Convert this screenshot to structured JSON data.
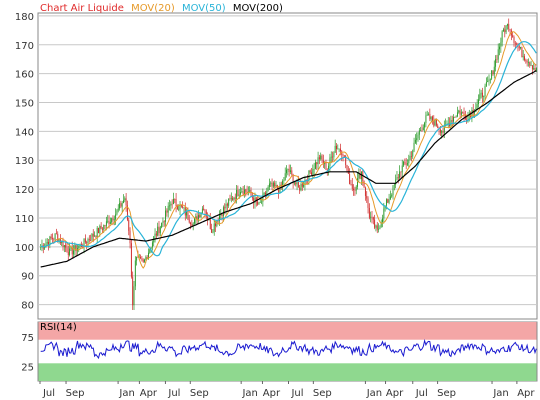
{
  "chart_data": [
    {
      "type": "candlestick",
      "title": "Chart Air Liquide",
      "legend": [
        {
          "name": "MOV(20)",
          "color": "#e69a2a"
        },
        {
          "name": "MOV(50)",
          "color": "#2ab4d8"
        },
        {
          "name": "MOV(200)",
          "color": "#000000"
        }
      ],
      "title_color": "#e02a2a",
      "ylim": [
        75,
        181
      ],
      "y_ticks": [
        80,
        90,
        100,
        110,
        120,
        130,
        140,
        150,
        160,
        170,
        180
      ],
      "grid": true,
      "up_color": "#2a9a2a",
      "down_color": "#d02a2a",
      "price_anchors": [
        [
          0,
          100
        ],
        [
          12,
          104
        ],
        [
          22,
          98
        ],
        [
          32,
          101
        ],
        [
          40,
          104
        ],
        [
          50,
          108
        ],
        [
          58,
          112
        ],
        [
          64,
          117
        ],
        [
          68,
          102
        ],
        [
          70,
          79
        ],
        [
          72,
          96
        ],
        [
          78,
          94
        ],
        [
          86,
          103
        ],
        [
          92,
          108
        ],
        [
          100,
          116
        ],
        [
          108,
          113
        ],
        [
          116,
          108
        ],
        [
          124,
          114
        ],
        [
          130,
          106
        ],
        [
          136,
          111
        ],
        [
          144,
          116
        ],
        [
          152,
          120
        ],
        [
          158,
          119
        ],
        [
          166,
          114
        ],
        [
          174,
          121
        ],
        [
          182,
          120
        ],
        [
          188,
          127
        ],
        [
          196,
          120
        ],
        [
          204,
          125
        ],
        [
          212,
          131
        ],
        [
          218,
          127
        ],
        [
          224,
          135
        ],
        [
          230,
          133
        ],
        [
          234,
          124
        ],
        [
          238,
          120
        ],
        [
          244,
          126
        ],
        [
          250,
          111
        ],
        [
          256,
          105
        ],
        [
          262,
          114
        ],
        [
          268,
          120
        ],
        [
          274,
          127
        ],
        [
          280,
          130
        ],
        [
          288,
          140
        ],
        [
          294,
          145
        ],
        [
          300,
          143
        ],
        [
          306,
          140
        ],
        [
          312,
          144
        ],
        [
          318,
          147
        ],
        [
          324,
          145
        ],
        [
          330,
          148
        ],
        [
          336,
          153
        ],
        [
          342,
          158
        ],
        [
          348,
          168
        ],
        [
          352,
          175
        ],
        [
          356,
          177
        ],
        [
          360,
          172
        ],
        [
          366,
          167
        ],
        [
          372,
          164
        ],
        [
          377,
          161
        ]
      ],
      "mov200_anchors": [
        [
          0,
          93
        ],
        [
          20,
          95
        ],
        [
          40,
          100
        ],
        [
          60,
          103
        ],
        [
          80,
          102
        ],
        [
          100,
          104
        ],
        [
          120,
          108
        ],
        [
          140,
          112
        ],
        [
          160,
          115
        ],
        [
          180,
          120
        ],
        [
          200,
          124
        ],
        [
          220,
          126
        ],
        [
          240,
          126
        ],
        [
          255,
          122
        ],
        [
          270,
          122
        ],
        [
          285,
          128
        ],
        [
          300,
          136
        ],
        [
          320,
          144
        ],
        [
          340,
          150
        ],
        [
          360,
          157
        ],
        [
          377,
          161
        ]
      ],
      "x_tick_labels": [
        "Jul",
        "Sep",
        "Jan",
        "Apr",
        "Jul",
        "Sep",
        "Jan",
        "Apr",
        "Jul",
        "Sep",
        "Jan",
        "Apr",
        "Jul",
        "Sep",
        "Jan",
        "Apr"
      ],
      "x_tick_positions": [
        0,
        22,
        66,
        84,
        106,
        127,
        170,
        188,
        210,
        231,
        275,
        292,
        315,
        336,
        382,
        403
      ]
    },
    {
      "type": "line",
      "title": "RSI(14)",
      "ylim": [
        0,
        100
      ],
      "y_ticks": [
        25,
        75
      ],
      "overbought_band": [
        70,
        100
      ],
      "oversold_band": [
        0,
        30
      ],
      "band_colors": {
        "overbought": "#f4a6a6",
        "oversold": "#8fd88f",
        "line": "#1a1ad0"
      },
      "series": [
        {
          "values": [
            55,
            60,
            48,
            52,
            62,
            58,
            45,
            50,
            55,
            63,
            57,
            49,
            52,
            60,
            56,
            47,
            53,
            58,
            62,
            55,
            50,
            48,
            56,
            61,
            59,
            52,
            46,
            54,
            60,
            57,
            51,
            49,
            55,
            62,
            58,
            53,
            50,
            56,
            60,
            54,
            48,
            52,
            59,
            63,
            57,
            50,
            47,
            55,
            61,
            58,
            52,
            49,
            56,
            60,
            55,
            51
          ]
        }
      ]
    }
  ]
}
